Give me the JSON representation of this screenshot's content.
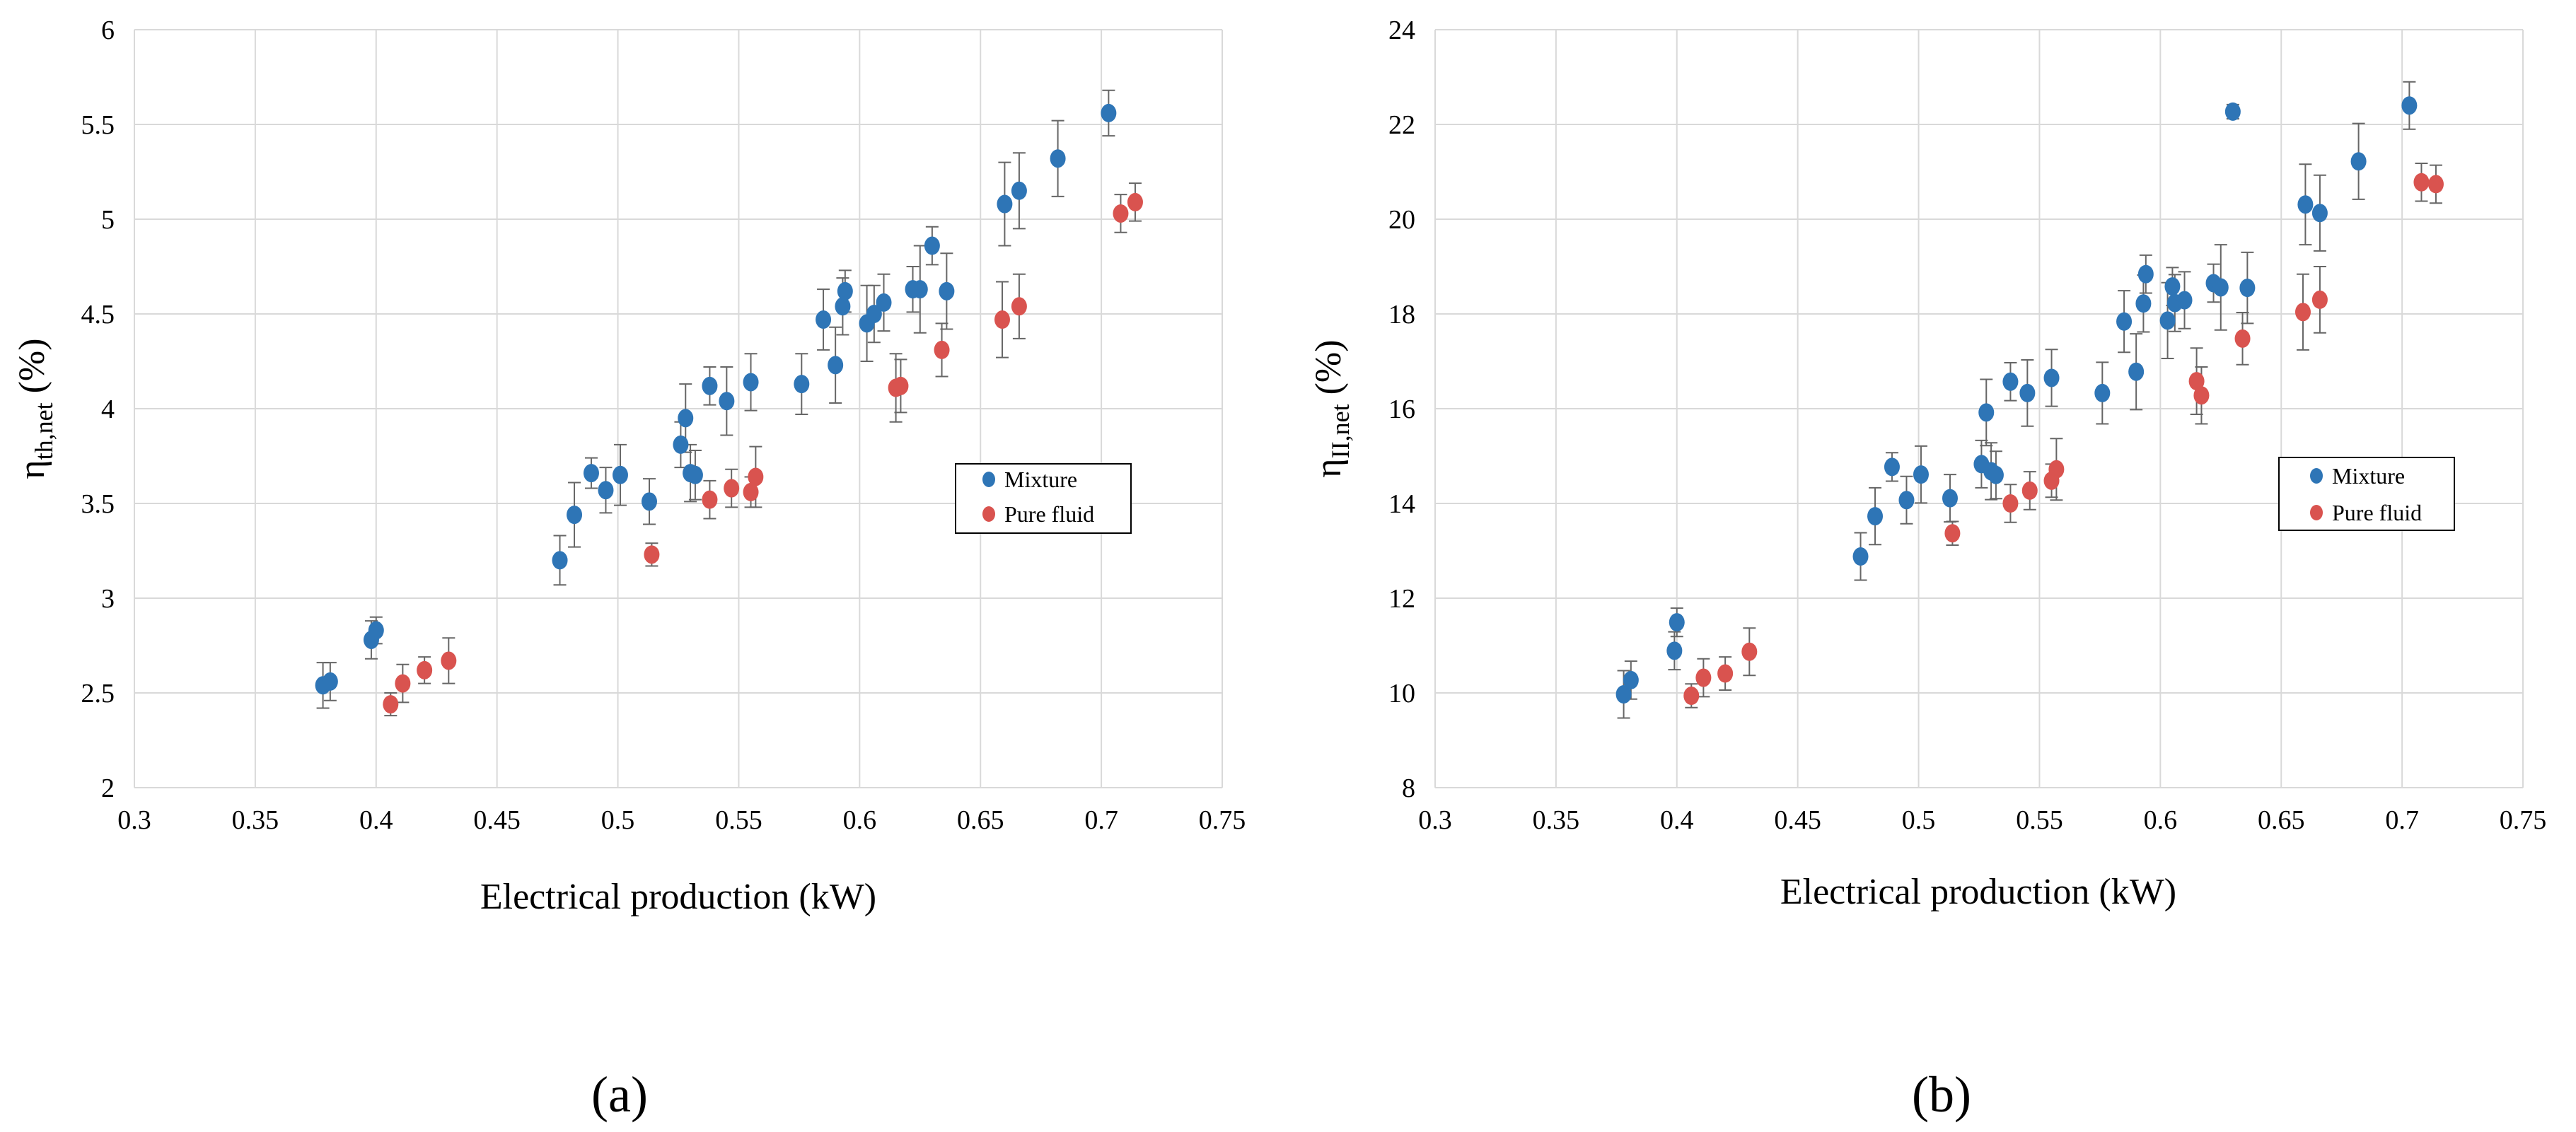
{
  "colors": {
    "mixture": "#2E75B6",
    "pure_fluid": "#D9534F",
    "grid": "#D9D9D9",
    "error_bar": "#666666"
  },
  "chart_data": [
    {
      "type": "scatter",
      "panel_label": "(a)",
      "xlabel": "Electrical production (kW)",
      "ylabel_symbol": "η",
      "ylabel_sub": "th,net",
      "ylabel_unit": " (%)",
      "xlim": [
        0.3,
        0.75
      ],
      "ylim": [
        2,
        6
      ],
      "xticks": [
        0.3,
        0.35,
        0.4,
        0.45,
        0.5,
        0.55,
        0.6,
        0.65,
        0.7,
        0.75
      ],
      "xtick_labels": [
        "0.3",
        "0.35",
        "0.4",
        "0.45",
        "0.5",
        "0.55",
        "0.6",
        "0.65",
        "0.7",
        "0.75"
      ],
      "yticks": [
        2,
        2.5,
        3,
        3.5,
        4,
        4.5,
        5,
        5.5,
        6
      ],
      "ytick_labels": [
        "2",
        "2.5",
        "3",
        "3.5",
        "4",
        "4.5",
        "5",
        "5.5",
        "6"
      ],
      "grid": true,
      "legend_position": "right",
      "series": [
        {
          "name": "Mixture",
          "points": [
            [
              0.378,
              2.54,
              0.12
            ],
            [
              0.381,
              2.56,
              0.1
            ],
            [
              0.398,
              2.78,
              0.1
            ],
            [
              0.4,
              2.83,
              0.07
            ],
            [
              0.476,
              3.2,
              0.13
            ],
            [
              0.482,
              3.44,
              0.17
            ],
            [
              0.489,
              3.66,
              0.08
            ],
            [
              0.495,
              3.57,
              0.12
            ],
            [
              0.501,
              3.65,
              0.16
            ],
            [
              0.513,
              3.51,
              0.12
            ],
            [
              0.526,
              3.81,
              0.12
            ],
            [
              0.528,
              3.95,
              0.18
            ],
            [
              0.53,
              3.66,
              0.15
            ],
            [
              0.532,
              3.65,
              0.13
            ],
            [
              0.538,
              4.12,
              0.1
            ],
            [
              0.545,
              4.04,
              0.18
            ],
            [
              0.555,
              4.14,
              0.15
            ],
            [
              0.576,
              4.13,
              0.16
            ],
            [
              0.585,
              4.47,
              0.16
            ],
            [
              0.59,
              4.23,
              0.2
            ],
            [
              0.593,
              4.54,
              0.15
            ],
            [
              0.594,
              4.62,
              0.11
            ],
            [
              0.603,
              4.45,
              0.2
            ],
            [
              0.606,
              4.5,
              0.15
            ],
            [
              0.61,
              4.56,
              0.15
            ],
            [
              0.622,
              4.63,
              0.12
            ],
            [
              0.625,
              4.63,
              0.23
            ],
            [
              0.63,
              4.86,
              0.1
            ],
            [
              0.636,
              4.62,
              0.2
            ],
            [
              0.66,
              5.08,
              0.22
            ],
            [
              0.666,
              5.15,
              0.2
            ],
            [
              0.682,
              5.32,
              0.2
            ],
            [
              0.703,
              5.56,
              0.12
            ]
          ]
        },
        {
          "name": "Pure fluid",
          "points": [
            [
              0.406,
              2.44,
              0.06
            ],
            [
              0.411,
              2.55,
              0.1
            ],
            [
              0.42,
              2.62,
              0.07
            ],
            [
              0.43,
              2.67,
              0.12
            ],
            [
              0.514,
              3.23,
              0.06
            ],
            [
              0.538,
              3.52,
              0.1
            ],
            [
              0.547,
              3.58,
              0.1
            ],
            [
              0.555,
              3.56,
              0.08
            ],
            [
              0.557,
              3.64,
              0.16
            ],
            [
              0.615,
              4.11,
              0.18
            ],
            [
              0.617,
              4.12,
              0.14
            ],
            [
              0.634,
              4.31,
              0.14
            ],
            [
              0.659,
              4.47,
              0.2
            ],
            [
              0.666,
              4.54,
              0.17
            ],
            [
              0.708,
              5.03,
              0.1
            ],
            [
              0.714,
              5.09,
              0.1
            ]
          ]
        }
      ]
    },
    {
      "type": "scatter",
      "panel_label": "(b)",
      "xlabel": "Electrical production (kW)",
      "ylabel_symbol": "η",
      "ylabel_sub": "II,net",
      "ylabel_unit": " (%)",
      "xlim": [
        0.3,
        0.75
      ],
      "ylim": [
        8,
        24
      ],
      "xticks": [
        0.3,
        0.35,
        0.4,
        0.45,
        0.5,
        0.55,
        0.6,
        0.65,
        0.7,
        0.75
      ],
      "xtick_labels": [
        "0.3",
        "0.35",
        "0.4",
        "0.45",
        "0.5",
        "0.55",
        "0.6",
        "0.65",
        "0.7",
        "0.75"
      ],
      "yticks": [
        8,
        10,
        12,
        14,
        16,
        18,
        20,
        22,
        24
      ],
      "ytick_labels": [
        "8",
        "10",
        "12",
        "14",
        "16",
        "18",
        "20",
        "22",
        "24"
      ],
      "grid": true,
      "legend_position": "right",
      "series": [
        {
          "name": "Mixture",
          "points": [
            [
              0.378,
              9.97,
              0.5
            ],
            [
              0.381,
              10.27,
              0.4
            ],
            [
              0.399,
              10.89,
              0.4
            ],
            [
              0.4,
              11.49,
              0.3
            ],
            [
              0.476,
              12.88,
              0.5
            ],
            [
              0.482,
              13.73,
              0.6
            ],
            [
              0.489,
              14.77,
              0.3
            ],
            [
              0.495,
              14.07,
              0.5
            ],
            [
              0.501,
              14.61,
              0.6
            ],
            [
              0.513,
              14.11,
              0.5
            ],
            [
              0.526,
              14.83,
              0.5
            ],
            [
              0.528,
              15.92,
              0.7
            ],
            [
              0.53,
              14.68,
              0.6
            ],
            [
              0.532,
              14.6,
              0.5
            ],
            [
              0.538,
              16.57,
              0.4
            ],
            [
              0.545,
              16.33,
              0.7
            ],
            [
              0.555,
              16.65,
              0.6
            ],
            [
              0.576,
              16.33,
              0.65
            ],
            [
              0.585,
              17.84,
              0.65
            ],
            [
              0.59,
              16.78,
              0.8
            ],
            [
              0.593,
              18.22,
              0.6
            ],
            [
              0.594,
              18.84,
              0.4
            ],
            [
              0.603,
              17.86,
              0.8
            ],
            [
              0.605,
              18.58,
              0.4
            ],
            [
              0.606,
              18.23,
              0.6
            ],
            [
              0.61,
              18.29,
              0.6
            ],
            [
              0.622,
              18.65,
              0.4
            ],
            [
              0.625,
              18.56,
              0.9
            ],
            [
              0.63,
              22.27,
              0.15
            ],
            [
              0.636,
              18.55,
              0.75
            ],
            [
              0.66,
              20.31,
              0.85
            ],
            [
              0.666,
              20.13,
              0.8
            ],
            [
              0.682,
              21.22,
              0.8
            ],
            [
              0.703,
              22.4,
              0.5
            ]
          ]
        },
        {
          "name": "Pure fluid",
          "points": [
            [
              0.406,
              9.94,
              0.25
            ],
            [
              0.411,
              10.32,
              0.4
            ],
            [
              0.42,
              10.41,
              0.35
            ],
            [
              0.43,
              10.87,
              0.5
            ],
            [
              0.514,
              13.37,
              0.25
            ],
            [
              0.538,
              14.0,
              0.4
            ],
            [
              0.546,
              14.27,
              0.4
            ],
            [
              0.555,
              14.48,
              0.35
            ],
            [
              0.557,
              14.72,
              0.65
            ],
            [
              0.615,
              16.58,
              0.7
            ],
            [
              0.617,
              16.28,
              0.6
            ],
            [
              0.634,
              17.48,
              0.55
            ],
            [
              0.659,
              18.04,
              0.8
            ],
            [
              0.666,
              18.3,
              0.7
            ],
            [
              0.708,
              20.78,
              0.4
            ],
            [
              0.714,
              20.74,
              0.4
            ]
          ]
        }
      ]
    }
  ]
}
